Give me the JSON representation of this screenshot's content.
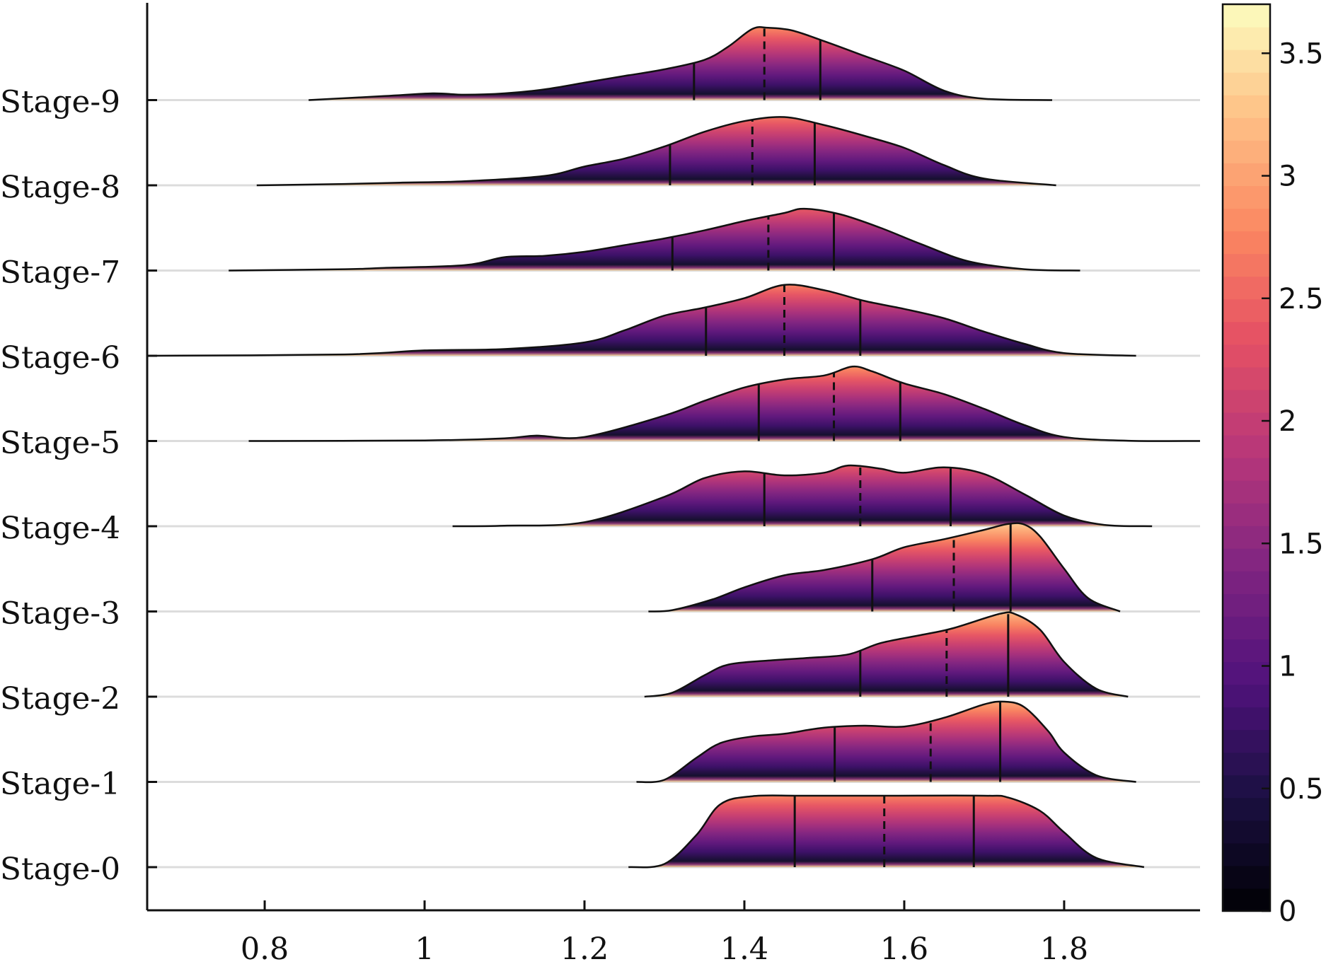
{
  "chart_data": {
    "type": "ridgeline",
    "categories": [
      "Stage-0",
      "Stage-1",
      "Stage-2",
      "Stage-3",
      "Stage-4",
      "Stage-5",
      "Stage-6",
      "Stage-7",
      "Stage-8",
      "Stage-9"
    ],
    "x_ticks": [
      0.8,
      1,
      1.2,
      1.4,
      1.6,
      1.8
    ],
    "x_tick_labels": [
      "0.8",
      "1",
      "1.2",
      "1.4",
      "1.6",
      "1.8"
    ],
    "xlim": [
      0.653,
      1.97
    ],
    "ridge_height_density": 3.7,
    "colorbar": {
      "colormap": "magma",
      "range": [
        0,
        3.7
      ],
      "ticks": [
        0,
        0.5,
        1,
        1.5,
        2,
        2.5,
        3,
        3.5
      ],
      "tick_labels": [
        "0",
        "0.5",
        "1",
        "1.5",
        "2",
        "2.5",
        "3",
        "3.5"
      ]
    },
    "grid": "horizontal baselines",
    "ridges": [
      {
        "name": "Stage-0",
        "range": [
          1.255,
          1.9
        ],
        "q1": 1.463,
        "median": 1.575,
        "q3": 1.687,
        "density": [
          [
            1.255,
            0
          ],
          [
            1.3,
            0.12
          ],
          [
            1.34,
            1.2
          ],
          [
            1.37,
            2.35
          ],
          [
            1.41,
            2.65
          ],
          [
            1.47,
            2.67
          ],
          [
            1.575,
            2.67
          ],
          [
            1.7,
            2.67
          ],
          [
            1.73,
            2.6
          ],
          [
            1.77,
            2.1
          ],
          [
            1.8,
            1.3
          ],
          [
            1.84,
            0.35
          ],
          [
            1.9,
            0
          ]
        ]
      },
      {
        "name": "Stage-1",
        "range": [
          1.265,
          1.89
        ],
        "q1": 1.513,
        "median": 1.633,
        "q3": 1.72,
        "density": [
          [
            1.265,
            0
          ],
          [
            1.3,
            0.08
          ],
          [
            1.34,
            0.9
          ],
          [
            1.37,
            1.45
          ],
          [
            1.41,
            1.7
          ],
          [
            1.45,
            1.8
          ],
          [
            1.5,
            2.03
          ],
          [
            1.55,
            2.1
          ],
          [
            1.6,
            2.07
          ],
          [
            1.65,
            2.4
          ],
          [
            1.7,
            2.9
          ],
          [
            1.725,
            3.0
          ],
          [
            1.75,
            2.8
          ],
          [
            1.78,
            1.9
          ],
          [
            1.8,
            1.1
          ],
          [
            1.84,
            0.25
          ],
          [
            1.89,
            0
          ]
        ]
      },
      {
        "name": "Stage-2",
        "range": [
          1.275,
          1.88
        ],
        "q1": 1.545,
        "median": 1.653,
        "q3": 1.73,
        "density": [
          [
            1.275,
            0
          ],
          [
            1.31,
            0.15
          ],
          [
            1.35,
            0.8
          ],
          [
            1.38,
            1.2
          ],
          [
            1.43,
            1.35
          ],
          [
            1.48,
            1.45
          ],
          [
            1.53,
            1.58
          ],
          [
            1.57,
            2.0
          ],
          [
            1.62,
            2.3
          ],
          [
            1.66,
            2.55
          ],
          [
            1.72,
            3.1
          ],
          [
            1.74,
            3.07
          ],
          [
            1.77,
            2.5
          ],
          [
            1.8,
            1.3
          ],
          [
            1.84,
            0.3
          ],
          [
            1.88,
            0
          ]
        ]
      },
      {
        "name": "Stage-3",
        "range": [
          1.28,
          1.87
        ],
        "q1": 1.56,
        "median": 1.662,
        "q3": 1.733,
        "density": [
          [
            1.28,
            0
          ],
          [
            1.31,
            0.05
          ],
          [
            1.36,
            0.45
          ],
          [
            1.4,
            0.9
          ],
          [
            1.45,
            1.35
          ],
          [
            1.5,
            1.55
          ],
          [
            1.56,
            1.95
          ],
          [
            1.6,
            2.4
          ],
          [
            1.65,
            2.7
          ],
          [
            1.7,
            3.05
          ],
          [
            1.73,
            3.27
          ],
          [
            1.75,
            3.25
          ],
          [
            1.77,
            2.8
          ],
          [
            1.8,
            1.6
          ],
          [
            1.83,
            0.5
          ],
          [
            1.87,
            0
          ]
        ]
      },
      {
        "name": "Stage-4",
        "range": [
          1.035,
          1.91
        ],
        "q1": 1.425,
        "median": 1.545,
        "q3": 1.658,
        "density": [
          [
            1.035,
            0
          ],
          [
            1.1,
            0.02
          ],
          [
            1.2,
            0.15
          ],
          [
            1.3,
            1.1
          ],
          [
            1.35,
            1.8
          ],
          [
            1.4,
            2.05
          ],
          [
            1.45,
            1.9
          ],
          [
            1.5,
            2.0
          ],
          [
            1.53,
            2.27
          ],
          [
            1.57,
            2.15
          ],
          [
            1.6,
            2.0
          ],
          [
            1.65,
            2.2
          ],
          [
            1.7,
            1.95
          ],
          [
            1.75,
            1.2
          ],
          [
            1.8,
            0.4
          ],
          [
            1.85,
            0.05
          ],
          [
            1.91,
            0
          ]
        ]
      },
      {
        "name": "Stage-5",
        "range": [
          0.78,
          1.97
        ],
        "q1": 1.418,
        "median": 1.512,
        "q3": 1.595,
        "density": [
          [
            0.78,
            0
          ],
          [
            1.0,
            0.02
          ],
          [
            1.1,
            0.1
          ],
          [
            1.14,
            0.2
          ],
          [
            1.2,
            0.15
          ],
          [
            1.3,
            0.95
          ],
          [
            1.35,
            1.5
          ],
          [
            1.4,
            2.0
          ],
          [
            1.45,
            2.3
          ],
          [
            1.5,
            2.45
          ],
          [
            1.535,
            2.78
          ],
          [
            1.56,
            2.6
          ],
          [
            1.6,
            2.15
          ],
          [
            1.65,
            1.75
          ],
          [
            1.7,
            1.2
          ],
          [
            1.75,
            0.6
          ],
          [
            1.8,
            0.15
          ],
          [
            1.88,
            0.01
          ],
          [
            1.97,
            0
          ]
        ]
      },
      {
        "name": "Stage-6",
        "range": [
          0.653,
          1.89
        ],
        "q1": 1.352,
        "median": 1.45,
        "q3": 1.545,
        "density": [
          [
            0.653,
            0
          ],
          [
            0.9,
            0.05
          ],
          [
            1.0,
            0.2
          ],
          [
            1.1,
            0.25
          ],
          [
            1.2,
            0.5
          ],
          [
            1.25,
            0.95
          ],
          [
            1.3,
            1.5
          ],
          [
            1.35,
            1.8
          ],
          [
            1.4,
            2.15
          ],
          [
            1.45,
            2.65
          ],
          [
            1.5,
            2.45
          ],
          [
            1.55,
            2.05
          ],
          [
            1.6,
            1.75
          ],
          [
            1.65,
            1.4
          ],
          [
            1.7,
            0.9
          ],
          [
            1.75,
            0.45
          ],
          [
            1.8,
            0.1
          ],
          [
            1.89,
            0
          ]
        ]
      },
      {
        "name": "Stage-7",
        "range": [
          0.755,
          1.82
        ],
        "q1": 1.31,
        "median": 1.43,
        "q3": 1.512,
        "density": [
          [
            0.755,
            0
          ],
          [
            0.9,
            0.05
          ],
          [
            0.95,
            0.1
          ],
          [
            1.05,
            0.2
          ],
          [
            1.1,
            0.5
          ],
          [
            1.15,
            0.55
          ],
          [
            1.2,
            0.7
          ],
          [
            1.25,
            0.95
          ],
          [
            1.3,
            1.2
          ],
          [
            1.35,
            1.5
          ],
          [
            1.4,
            1.85
          ],
          [
            1.45,
            2.15
          ],
          [
            1.475,
            2.31
          ],
          [
            1.52,
            2.1
          ],
          [
            1.57,
            1.6
          ],
          [
            1.62,
            1.0
          ],
          [
            1.68,
            0.35
          ],
          [
            1.75,
            0.05
          ],
          [
            1.82,
            0
          ]
        ]
      },
      {
        "name": "Stage-8",
        "range": [
          0.79,
          1.79
        ],
        "q1": 1.307,
        "median": 1.41,
        "q3": 1.488,
        "density": [
          [
            0.79,
            0
          ],
          [
            0.9,
            0.05
          ],
          [
            0.97,
            0.1
          ],
          [
            1.05,
            0.15
          ],
          [
            1.15,
            0.35
          ],
          [
            1.2,
            0.7
          ],
          [
            1.25,
            1.0
          ],
          [
            1.3,
            1.45
          ],
          [
            1.35,
            2.0
          ],
          [
            1.4,
            2.4
          ],
          [
            1.45,
            2.55
          ],
          [
            1.5,
            2.25
          ],
          [
            1.55,
            1.85
          ],
          [
            1.6,
            1.4
          ],
          [
            1.65,
            0.75
          ],
          [
            1.7,
            0.25
          ],
          [
            1.79,
            0
          ]
        ]
      },
      {
        "name": "Stage-9",
        "range": [
          0.855,
          1.785
        ],
        "q1": 1.337,
        "median": 1.425,
        "q3": 1.495,
        "density": [
          [
            0.855,
            0
          ],
          [
            0.95,
            0.15
          ],
          [
            1.01,
            0.25
          ],
          [
            1.05,
            0.2
          ],
          [
            1.1,
            0.25
          ],
          [
            1.15,
            0.4
          ],
          [
            1.2,
            0.65
          ],
          [
            1.25,
            0.9
          ],
          [
            1.3,
            1.15
          ],
          [
            1.35,
            1.5
          ],
          [
            1.38,
            2.0
          ],
          [
            1.41,
            2.66
          ],
          [
            1.43,
            2.7
          ],
          [
            1.46,
            2.6
          ],
          [
            1.5,
            2.2
          ],
          [
            1.55,
            1.65
          ],
          [
            1.6,
            1.1
          ],
          [
            1.65,
            0.35
          ],
          [
            1.7,
            0.05
          ],
          [
            1.785,
            0
          ]
        ]
      }
    ]
  }
}
